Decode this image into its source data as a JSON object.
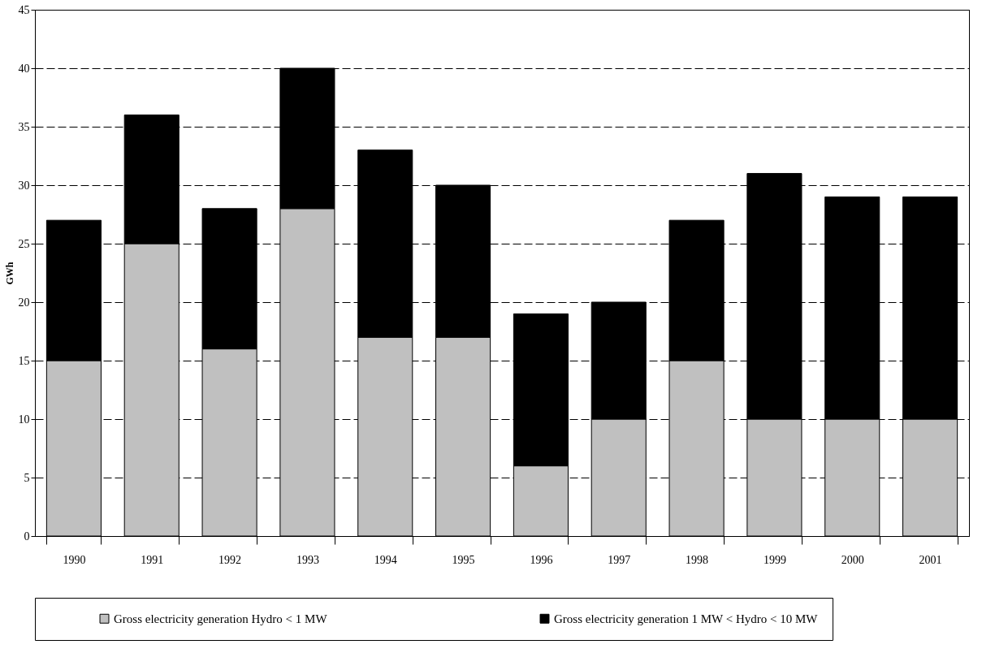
{
  "chart_data": {
    "type": "bar",
    "stacked": true,
    "ylabel": "GWh",
    "categories": [
      "1990",
      "1991",
      "1992",
      "1993",
      "1994",
      "1995",
      "1996",
      "1997",
      "1998",
      "1999",
      "2000",
      "2001"
    ],
    "series": [
      {
        "name": "Gross electricity generation Hydro < 1 MW",
        "color": "#c0c0c0",
        "values": [
          15,
          25,
          16,
          28,
          17,
          17,
          6,
          10,
          15,
          10,
          10,
          10
        ]
      },
      {
        "name": "Gross electricity generation 1 MW < Hydro < 10 MW",
        "color": "#000000",
        "values": [
          12,
          11,
          12,
          12,
          16,
          13,
          13,
          10,
          12,
          21,
          19,
          19
        ]
      }
    ],
    "ylim": [
      0,
      45
    ],
    "yticks": [
      0,
      5,
      10,
      15,
      20,
      25,
      30,
      35,
      40,
      45
    ],
    "grid": "y",
    "legend": "bottom"
  }
}
